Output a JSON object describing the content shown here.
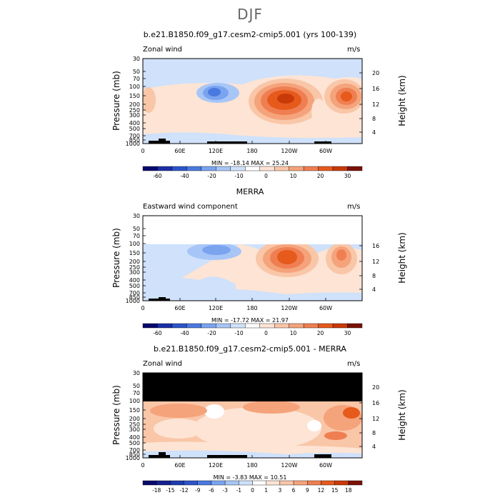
{
  "figure_title": "DJF",
  "colors": {
    "dark_blue": "#0a0a7a",
    "mid_blue": "#3a5fd8",
    "light_blue": "#cfe1fb",
    "peach": "#fbe3d3",
    "salmon": "#f5a37b",
    "red_orange": "#e65a1c",
    "dark_red": "#7a1205",
    "terrain": "#000000"
  },
  "chart_data": [
    {
      "type": "heatmap",
      "title": "b.e21.B1850.f09_g17.cesm2-cmip5.001 (yrs 100-139)",
      "left_label": "Zonal wind",
      "units": "m/s",
      "ylabel": "Pressure (mb)",
      "y2label": "Height (km)",
      "y_ticks": [
        "30",
        "50",
        "70",
        "100",
        "150",
        "200",
        "250",
        "300",
        "400",
        "500",
        "700",
        "850",
        "1000"
      ],
      "y2_ticks": [
        "20",
        "16",
        "12",
        "8",
        "4"
      ],
      "x_ticks": [
        "0",
        "60E",
        "120E",
        "180",
        "120W",
        "60W"
      ],
      "stats": "MIN = -18.14  MAX = 25.24",
      "colorbar_labels": [
        "-60",
        "-40",
        "-20",
        "-10",
        "0",
        "10",
        "20",
        "30"
      ],
      "colorbar_colors": [
        "#08086e",
        "#1b2fa8",
        "#2e54c9",
        "#4a7ae0",
        "#7ba4ef",
        "#a7c6f7",
        "#cfe1fb",
        "#ffffff",
        "#fde4d4",
        "#f9c6a8",
        "#f5a37b",
        "#ef7f52",
        "#e65a1c",
        "#c93a08",
        "#7a1205"
      ],
      "masked_above_mb": null
    },
    {
      "type": "heatmap",
      "title": "MERRA",
      "left_label": "Eastward wind component",
      "units": "m/s",
      "ylabel": "Pressure (mb)",
      "y2label": "Height (km)",
      "y_ticks": [
        "30",
        "50",
        "70",
        "100",
        "150",
        "200",
        "250",
        "300",
        "400",
        "500",
        "700",
        "850",
        "1000"
      ],
      "y2_ticks": [
        "16",
        "12",
        "8",
        "4"
      ],
      "x_ticks": [
        "0",
        "60E",
        "120E",
        "180",
        "120W",
        "60W"
      ],
      "stats": "MIN = -17.72  MAX = 21.97",
      "colorbar_labels": [
        "-60",
        "-40",
        "-20",
        "-10",
        "0",
        "10",
        "20",
        "30"
      ],
      "colorbar_colors": [
        "#08086e",
        "#1b2fa8",
        "#2e54c9",
        "#4a7ae0",
        "#7ba4ef",
        "#a7c6f7",
        "#cfe1fb",
        "#ffffff",
        "#fde4d4",
        "#f9c6a8",
        "#f5a37b",
        "#ef7f52",
        "#e65a1c",
        "#c93a08",
        "#7a1205"
      ],
      "masked_above_mb": null
    },
    {
      "type": "heatmap",
      "title": "b.e21.B1850.f09_g17.cesm2-cmip5.001 - MERRA",
      "left_label": "Zonal wind",
      "units": "m/s",
      "ylabel": "Pressure (mb)",
      "y2label": "Height (km)",
      "y_ticks": [
        "30",
        "50",
        "70",
        "100",
        "150",
        "200",
        "250",
        "300",
        "400",
        "500",
        "700",
        "850",
        "1000"
      ],
      "y2_ticks": [
        "20",
        "16",
        "12",
        "8",
        "4"
      ],
      "x_ticks": [
        "0",
        "60E",
        "120E",
        "180",
        "120W",
        "60W"
      ],
      "stats": "MIN = -3.83  MAX = 10.51",
      "colorbar_labels": [
        "-18",
        "-15",
        "-12",
        "-9",
        "-6",
        "-3",
        "-1",
        "0",
        "1",
        "3",
        "6",
        "9",
        "12",
        "15",
        "18"
      ],
      "colorbar_colors": [
        "#08086e",
        "#14208f",
        "#1e3bb0",
        "#2e54c9",
        "#4a7ae0",
        "#7ba4ef",
        "#a7c6f7",
        "#cfe1fb",
        "#ffffff",
        "#fde4d4",
        "#f9c6a8",
        "#f5a37b",
        "#ef7f52",
        "#e65a1c",
        "#c93a08",
        "#7a1205"
      ],
      "masked_above_mb": 100
    }
  ]
}
